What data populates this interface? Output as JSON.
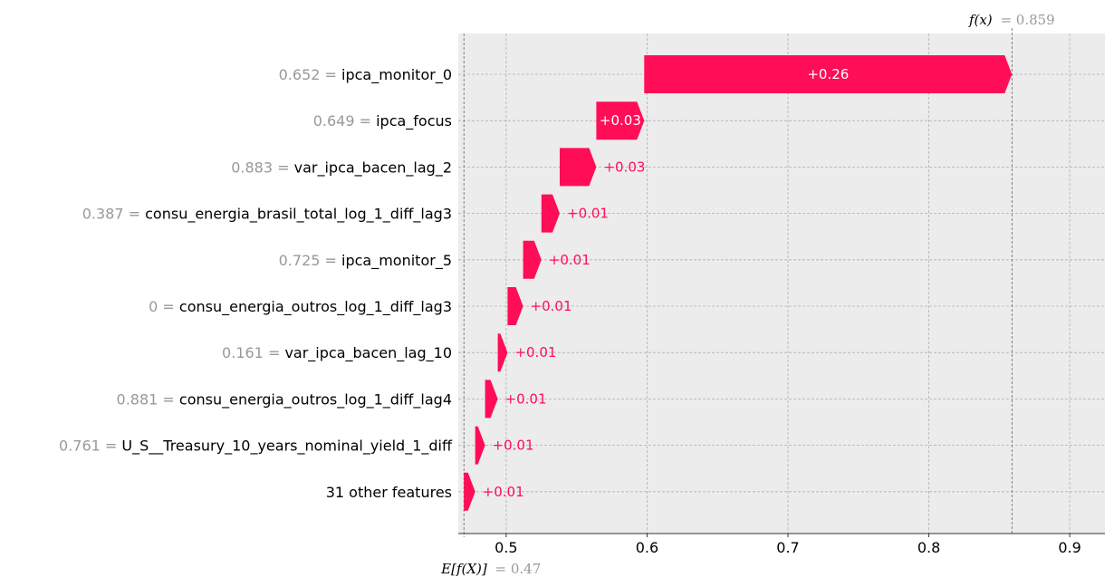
{
  "chart_data": {
    "type": "waterfall",
    "base_value": 0.47,
    "output_value": 0.859,
    "fx_label": "f(x)",
    "fx_value_text": "= 0.859",
    "efx_label": "E[f(X)]",
    "efx_value_text": "= 0.47",
    "xlim": [
      0.466,
      0.925
    ],
    "xticks": [
      0.5,
      0.6,
      0.7,
      0.8,
      0.9
    ],
    "xtick_labels": [
      "0.5",
      "0.6",
      "0.7",
      "0.8",
      "0.9"
    ],
    "grid": true,
    "features": [
      {
        "value": "0.652",
        "name": "ipca_monitor_0",
        "start": 0.598,
        "end": 0.859,
        "label": "+0.26"
      },
      {
        "value": "0.649",
        "name": "ipca_focus",
        "start": 0.564,
        "end": 0.598,
        "label": "+0.03"
      },
      {
        "value": "0.883",
        "name": "var_ipca_bacen_lag_2",
        "start": 0.538,
        "end": 0.564,
        "label": "+0.03"
      },
      {
        "value": "0.387",
        "name": "consu_energia_brasil_total_log_1_diff_lag3",
        "start": 0.525,
        "end": 0.538,
        "label": "+0.01"
      },
      {
        "value": "0.725",
        "name": "ipca_monitor_5",
        "start": 0.512,
        "end": 0.525,
        "label": "+0.01"
      },
      {
        "value": "0",
        "name": "consu_energia_outros_log_1_diff_lag3",
        "start": 0.501,
        "end": 0.512,
        "label": "+0.01"
      },
      {
        "value": "0.161",
        "name": "var_ipca_bacen_lag_10",
        "start": 0.494,
        "end": 0.501,
        "label": "+0.01"
      },
      {
        "value": "0.881",
        "name": "consu_energia_outros_log_1_diff_lag4",
        "start": 0.485,
        "end": 0.494,
        "label": "+0.01"
      },
      {
        "value": "0.761",
        "name": "U_S__Treasury_10_years_nominal_yield_1_diff",
        "start": 0.478,
        "end": 0.485,
        "label": "+0.01"
      },
      {
        "value": "",
        "name": "31 other features",
        "start": 0.47,
        "end": 0.478,
        "label": "+0.01"
      }
    ],
    "colors": {
      "positive": "#ff0d57",
      "plot_background": "#ececec",
      "grid": "#b0b0b0",
      "feature_value": "#999999",
      "label_on_bar": "#ffffff"
    }
  }
}
